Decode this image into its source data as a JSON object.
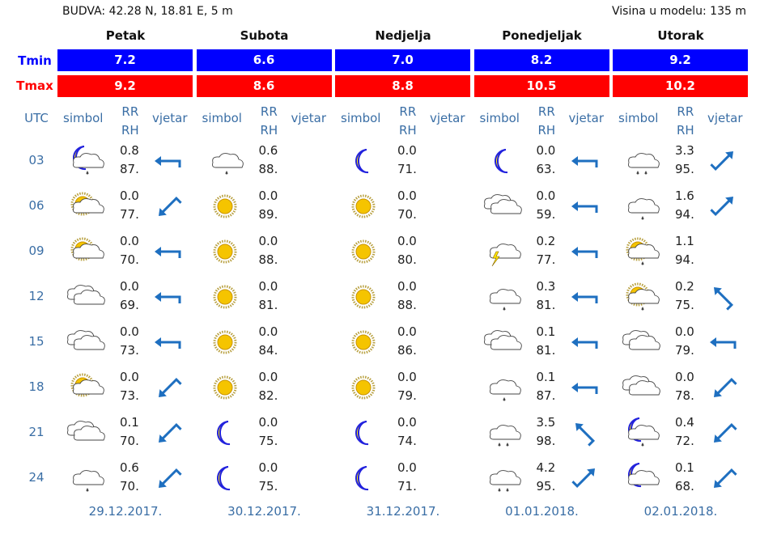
{
  "header": {
    "location": "BUDVA: 42.28 N, 18.81 E, 5 m",
    "model_height": "Visina u modelu: 135 m"
  },
  "labels": {
    "tmin": "Tmin",
    "tmax": "Tmax",
    "utc": "UTC",
    "simbol": "simbol",
    "rr": "RR",
    "rh": "RH",
    "vjetar": "vjetar"
  },
  "colors": {
    "tmin": "#0000ff",
    "tmax": "#ff0000",
    "text_blue": "#3a6ea5",
    "arrow": "#1e6fc0"
  },
  "hours": [
    "03",
    "06",
    "09",
    "12",
    "15",
    "18",
    "21",
    "24"
  ],
  "days": [
    {
      "name": "Petak",
      "tmin": "7.2",
      "tmax": "9.2",
      "date": "29.12.2017.",
      "symbols": [
        "moon-cloud-rain",
        "sun-cloud",
        "sun-cloud",
        "cloud",
        "cloud",
        "sun-cloud",
        "cloud",
        "cloud-rain"
      ],
      "rr": [
        "0.8",
        "0.0",
        "0.0",
        "0.0",
        "0.0",
        "0.0",
        "0.1",
        "0.6"
      ],
      "rh": [
        "87.",
        "77.",
        "70.",
        "69.",
        "73.",
        "73.",
        "70.",
        "70."
      ],
      "wind": [
        "left",
        "down-left",
        "left",
        "left",
        "left",
        "down-left",
        "down-left",
        "down-left"
      ]
    },
    {
      "name": "Subota",
      "tmin": "6.6",
      "tmax": "8.6",
      "date": "30.12.2017.",
      "symbols": [
        "cloud-rain",
        "sun",
        "sun",
        "sun",
        "sun",
        "sun",
        "moon",
        "moon"
      ],
      "rr": [
        "0.6",
        "0.0",
        "0.0",
        "0.0",
        "0.0",
        "0.0",
        "0.0",
        "0.0"
      ],
      "rh": [
        "88.",
        "89.",
        "88.",
        "81.",
        "84.",
        "82.",
        "75.",
        "75."
      ],
      "wind": [
        "",
        "",
        "",
        "",
        "",
        "",
        "",
        ""
      ]
    },
    {
      "name": "Nedjelja",
      "tmin": "7.0",
      "tmax": "8.8",
      "date": "31.12.2017.",
      "symbols": [
        "moon",
        "sun",
        "sun",
        "sun",
        "sun",
        "sun",
        "moon",
        "moon"
      ],
      "rr": [
        "0.0",
        "0.0",
        "0.0",
        "0.0",
        "0.0",
        "0.0",
        "0.0",
        "0.0"
      ],
      "rh": [
        "71.",
        "70.",
        "80.",
        "88.",
        "86.",
        "79.",
        "74.",
        "71."
      ],
      "wind": [
        "",
        "",
        "",
        "",
        "",
        "",
        "",
        ""
      ]
    },
    {
      "name": "Ponedjeljak",
      "tmin": "8.2",
      "tmax": "10.5",
      "date": "01.01.2018.",
      "symbols": [
        "moon",
        "cloud",
        "cloud-thunder",
        "cloud-rain",
        "cloud",
        "cloud-rain",
        "cloud-heavy-rain",
        "cloud-heavy-rain"
      ],
      "rr": [
        "0.0",
        "0.0",
        "0.2",
        "0.3",
        "0.1",
        "0.1",
        "3.5",
        "4.2"
      ],
      "rh": [
        "63.",
        "59.",
        "77.",
        "81.",
        "81.",
        "87.",
        "98.",
        "95."
      ],
      "wind": [
        "left",
        "left",
        "left",
        "left",
        "left",
        "left",
        "up-left",
        "up-right"
      ]
    },
    {
      "name": "Utorak",
      "tmin": "9.2",
      "tmax": "10.2",
      "date": "02.01.2018.",
      "symbols": [
        "cloud-heavy-rain",
        "cloud-rain",
        "sun-cloud-rain",
        "sun-cloud-rain",
        "cloud",
        "cloud",
        "moon-cloud-rain",
        "moon-cloud"
      ],
      "rr": [
        "3.3",
        "1.6",
        "1.1",
        "0.2",
        "0.0",
        "0.0",
        "0.4",
        "0.1"
      ],
      "rh": [
        "95.",
        "94.",
        "94.",
        "75.",
        "79.",
        "78.",
        "72.",
        "68."
      ],
      "wind": [
        "up-right",
        "up-right",
        "",
        "up-left",
        "left",
        "down-left",
        "down-left",
        "down-left"
      ]
    }
  ]
}
